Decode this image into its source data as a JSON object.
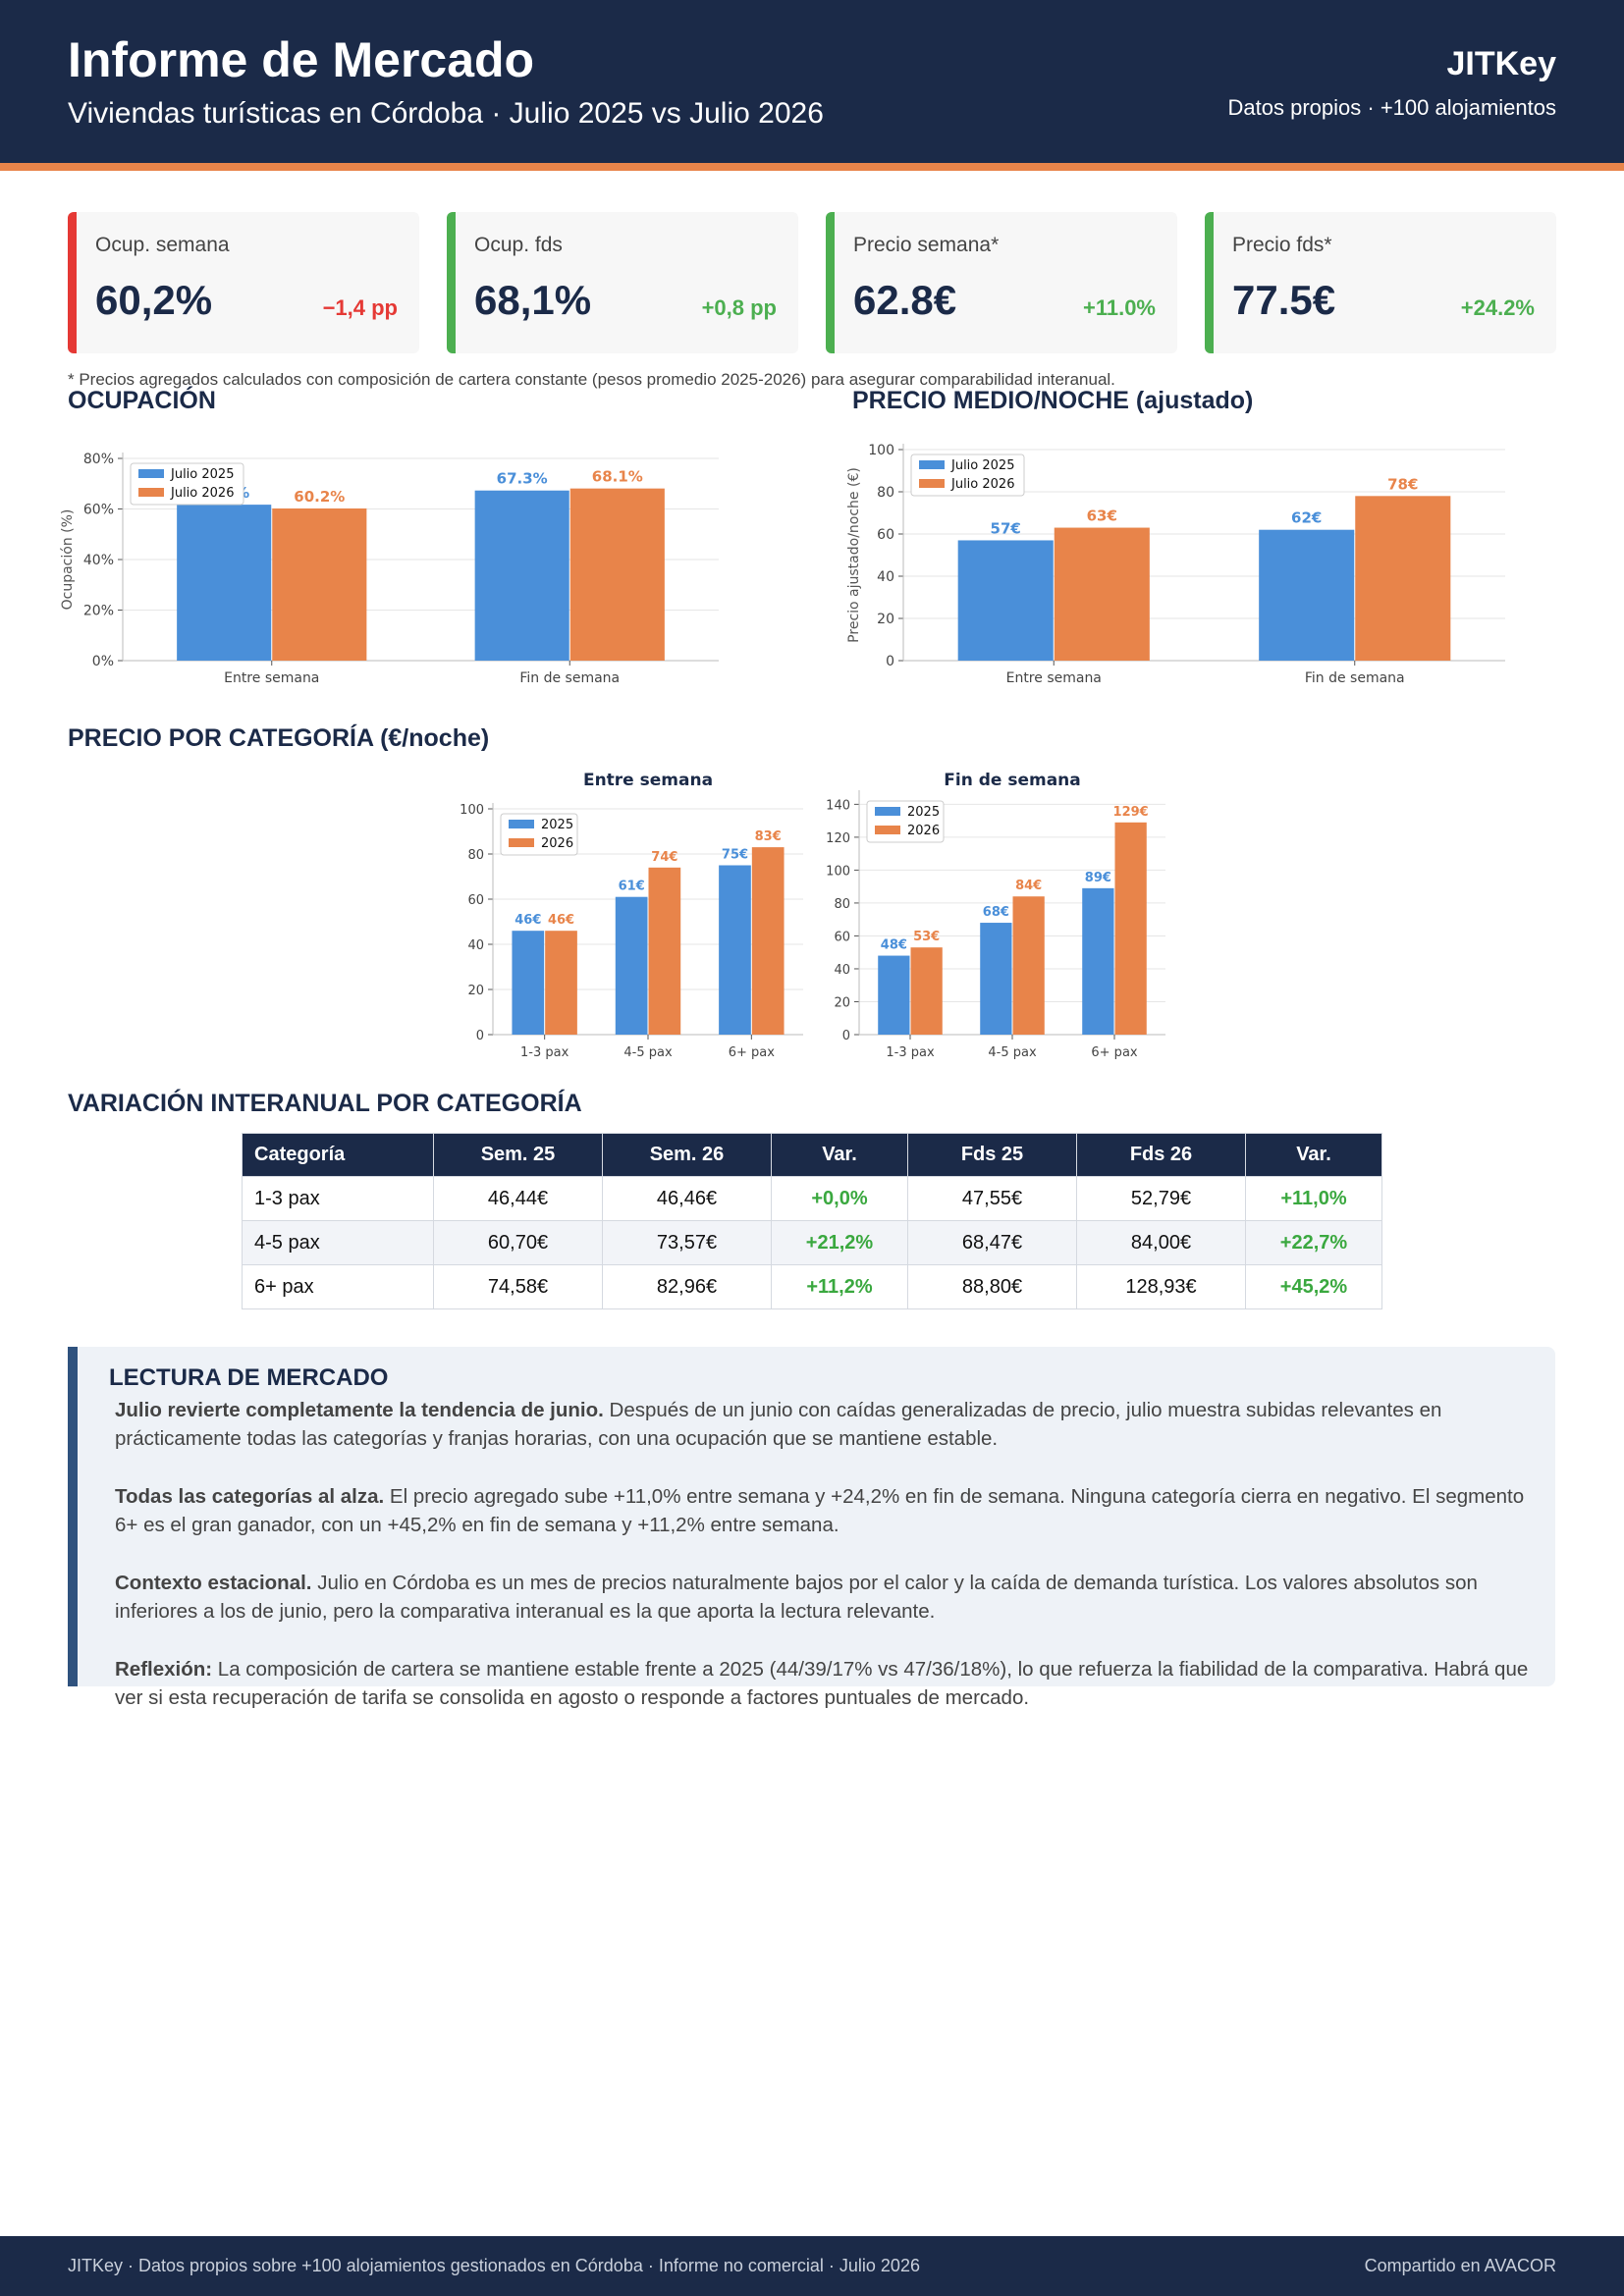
{
  "header": {
    "title": "Informe de Mercado",
    "subtitle": "Viviendas turísticas en Córdoba  ·  Julio 2025 vs Julio 2026",
    "brand": "JITKey",
    "brand_sub": "Datos propios · +100 alojamientos",
    "colors": {
      "navy": "#1b2a48",
      "accent": "#e8844a"
    }
  },
  "kpis": [
    {
      "label": "Ocup. semana",
      "value": "60,2%",
      "delta": "−1,4 pp",
      "color": "#e53935"
    },
    {
      "label": "Ocup. fds",
      "value": "68,1%",
      "delta": "+0,8 pp",
      "color": "#4caf50"
    },
    {
      "label": "Precio semana*",
      "value": "62.8€",
      "delta": "+11.0%",
      "color": "#4caf50"
    },
    {
      "label": "Precio fds*",
      "value": "77.5€",
      "delta": "+24.2%",
      "color": "#4caf50"
    }
  ],
  "footnote": "* Precios agregados calculados con composición de cartera constante (pesos promedio 2025-2026) para asegurar comparabilidad interanual.",
  "sections": {
    "occupancy": "OCUPACIÓN",
    "price": "PRECIO MEDIO/NOCHE (ajustado)",
    "category": "PRECIO POR CATEGORÍA (€/noche)",
    "variation": "VARIACIÓN INTERANUAL POR CATEGORÍA"
  },
  "chart_data": [
    {
      "type": "bar",
      "categories": [
        "Entre semana",
        "Fin de semana"
      ],
      "series": [
        {
          "name": "Julio 2025",
          "values": [
            61.7,
            67.3
          ],
          "labels": [
            "61.7%",
            "67.3%"
          ],
          "color": "#4a8fd9"
        },
        {
          "name": "Julio 2026",
          "values": [
            60.2,
            68.1
          ],
          "labels": [
            "60.2%",
            "68.1%"
          ],
          "color": "#e8844a"
        }
      ],
      "ylabel": "Ocupación (%)",
      "ylim": [
        0,
        80
      ],
      "yticks": [
        0,
        20,
        40,
        60,
        80
      ],
      "ytick_labels": [
        "0%",
        "20%",
        "40%",
        "60%",
        "80%"
      ],
      "legend": "top-left",
      "grid": true
    },
    {
      "type": "bar",
      "categories": [
        "Entre semana",
        "Fin de semana"
      ],
      "series": [
        {
          "name": "Julio 2025",
          "values": [
            57,
            62
          ],
          "labels": [
            "57€",
            "62€"
          ],
          "color": "#4a8fd9"
        },
        {
          "name": "Julio 2026",
          "values": [
            63,
            78
          ],
          "labels": [
            "63€",
            "78€"
          ],
          "color": "#e8844a"
        }
      ],
      "ylabel": "Precio ajustado/noche (€)",
      "ylim": [
        0,
        100
      ],
      "yticks": [
        0,
        20,
        40,
        60,
        80,
        100
      ],
      "ytick_labels": [
        "0",
        "20",
        "40",
        "60",
        "80",
        "100"
      ],
      "legend": "top-left",
      "grid": true
    },
    {
      "type": "bar",
      "title": "Entre semana",
      "categories": [
        "1-3 pax",
        "4-5 pax",
        "6+ pax"
      ],
      "series": [
        {
          "name": "2025",
          "values": [
            46,
            61,
            75
          ],
          "labels": [
            "46€",
            "61€",
            "75€"
          ],
          "color": "#4a8fd9"
        },
        {
          "name": "2026",
          "values": [
            46,
            74,
            83
          ],
          "labels": [
            "46€",
            "74€",
            "83€"
          ],
          "color": "#e8844a"
        }
      ],
      "ylim": [
        0,
        100
      ],
      "yticks": [
        0,
        20,
        40,
        60,
        80,
        100
      ],
      "ytick_labels": [
        "0",
        "20",
        "40",
        "60",
        "80",
        "100"
      ],
      "legend": "top-left",
      "grid": true
    },
    {
      "type": "bar",
      "title": "Fin de semana",
      "categories": [
        "1-3 pax",
        "4-5 pax",
        "6+ pax"
      ],
      "series": [
        {
          "name": "2025",
          "values": [
            48,
            68,
            89
          ],
          "labels": [
            "48€",
            "68€",
            "89€"
          ],
          "color": "#4a8fd9"
        },
        {
          "name": "2026",
          "values": [
            53,
            84,
            129
          ],
          "labels": [
            "53€",
            "84€",
            "129€"
          ],
          "color": "#e8844a"
        }
      ],
      "ylim": [
        0,
        145
      ],
      "yticks": [
        0,
        20,
        40,
        60,
        80,
        100,
        120,
        140
      ],
      "ytick_labels": [
        "0",
        "20",
        "40",
        "60",
        "80",
        "100",
        "120",
        "140"
      ],
      "legend": "top-left",
      "grid": true
    }
  ],
  "table": {
    "headers": [
      "Categoría",
      "Sem. 25",
      "Sem. 26",
      "Var.",
      "Fds 25",
      "Fds 26",
      "Var."
    ],
    "rows": [
      [
        "1-3 pax",
        "46,44€",
        "46,46€",
        "+0,0%",
        "47,55€",
        "52,79€",
        "+11,0%"
      ],
      [
        "4-5 pax",
        "60,70€",
        "73,57€",
        "+21,2%",
        "68,47€",
        "84,00€",
        "+22,7%"
      ],
      [
        "6+ pax",
        "74,58€",
        "82,96€",
        "+11,2%",
        "88,80€",
        "128,93€",
        "+45,2%"
      ]
    ]
  },
  "reading": {
    "title": "LECTURA DE MERCADO",
    "paragraphs": [
      {
        "bold": "Julio revierte completamente la tendencia de junio.",
        "text": " Después de un junio con caídas generalizadas de precio, julio muestra subidas relevantes en prácticamente todas las categorías y franjas horarias, con una ocupación que se mantiene estable."
      },
      {
        "bold": "Todas las categorías al alza.",
        "text": " El precio agregado sube +11,0% entre semana y +24,2% en fin de semana. Ninguna categoría cierra en negativo. El segmento 6+ es el gran ganador, con un +45,2% en fin de semana y +11,2% entre semana."
      },
      {
        "bold": "Contexto estacional.",
        "text": " Julio en Córdoba es un mes de precios naturalmente bajos por el calor y la caída de demanda turística. Los valores absolutos son inferiores a los de junio, pero la comparativa interanual es la que aporta la lectura relevante."
      },
      {
        "bold": "Reflexión:",
        "text": " La composición de cartera se mantiene estable frente a 2025 (44/39/17% vs 47/36/18%), lo que refuerza la fiabilidad de la comparativa. Habrá que ver si esta recuperación de tarifa se consolida en agosto o responde a factores puntuales de mercado."
      }
    ]
  },
  "footer": {
    "left": "JITKey  ·  Datos propios sobre +100 alojamientos gestionados en Córdoba  ·  Informe no comercial  ·  Julio 2026",
    "right": "Compartido en AVACOR"
  }
}
